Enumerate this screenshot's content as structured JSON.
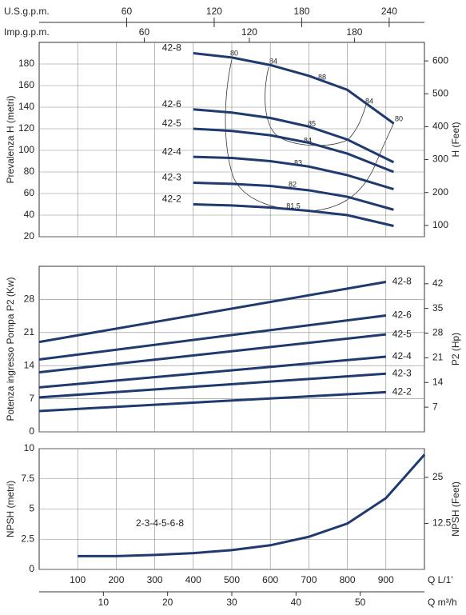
{
  "chart_data": [
    {
      "type": "line",
      "ylabel": "Prevalenza H (metri)",
      "y2label": "H (Feet)",
      "xlim": [
        0,
        1000
      ],
      "xticks": [
        100,
        200,
        300,
        400,
        500,
        600,
        700,
        800,
        900
      ],
      "ylim": [
        20,
        200
      ],
      "yticks": [
        20,
        40,
        60,
        80,
        100,
        120,
        140,
        160,
        180
      ],
      "y2lim": [
        65.62,
        656.17
      ],
      "y2ticks": [
        100,
        200,
        300,
        400,
        500,
        600
      ],
      "grid": true,
      "color": "#1f3a6e",
      "top_axes": [
        {
          "label": "U.S.g.p.m.",
          "xlim": [
            0,
            264.17
          ],
          "xticks": [
            60,
            120,
            180,
            240
          ]
        },
        {
          "label": "Imp.g.p.m.",
          "xlim": [
            0,
            219.97
          ],
          "xticks": [
            60,
            120,
            180
          ]
        }
      ],
      "efficiency_labels": [
        "80",
        "84",
        "88",
        "84",
        "80",
        "85",
        "84",
        "83",
        "82",
        "81.5"
      ],
      "series": [
        {
          "name": "42-8",
          "x": [
            400,
            500,
            600,
            700,
            800,
            920
          ],
          "values": [
            190,
            186,
            179,
            169,
            156,
            125
          ]
        },
        {
          "name": "42-6",
          "x": [
            400,
            500,
            600,
            700,
            800,
            920
          ],
          "values": [
            138,
            135,
            130,
            122,
            110,
            89
          ]
        },
        {
          "name": "42-5",
          "x": [
            400,
            500,
            600,
            700,
            800,
            920
          ],
          "values": [
            120,
            118,
            114,
            107,
            97,
            80
          ]
        },
        {
          "name": "42-4",
          "x": [
            400,
            500,
            600,
            700,
            800,
            920
          ],
          "values": [
            94,
            93,
            90,
            85,
            77,
            64
          ]
        },
        {
          "name": "42-3",
          "x": [
            400,
            500,
            600,
            700,
            800,
            920
          ],
          "values": [
            70,
            69,
            67,
            63,
            57,
            45
          ]
        },
        {
          "name": "42-2",
          "x": [
            400,
            500,
            600,
            700,
            800,
            920
          ],
          "values": [
            50,
            49,
            47,
            44,
            40,
            30
          ]
        }
      ]
    },
    {
      "type": "line",
      "ylabel": "Potenza ingresso Pompa P2 (Kw)",
      "y2label": "P2 (Hp)",
      "xlim": [
        0,
        1000
      ],
      "xticks": [
        100,
        200,
        300,
        400,
        500,
        600,
        700,
        800,
        900
      ],
      "ylim": [
        0,
        35
      ],
      "yticks": [
        0,
        7,
        14,
        21,
        28
      ],
      "y2lim": [
        0,
        46.94
      ],
      "y2ticks": [
        7,
        14,
        21,
        28,
        35,
        42
      ],
      "grid": true,
      "color": "#1f3a6e",
      "series": [
        {
          "name": "42-8",
          "x": [
            0,
            900
          ],
          "values": [
            19,
            31.7
          ]
        },
        {
          "name": "42-6",
          "x": [
            0,
            900
          ],
          "values": [
            15.3,
            24.6
          ]
        },
        {
          "name": "42-5",
          "x": [
            0,
            900
          ],
          "values": [
            12.6,
            20.6
          ]
        },
        {
          "name": "42-4",
          "x": [
            0,
            900
          ],
          "values": [
            9.4,
            15.9
          ]
        },
        {
          "name": "42-3",
          "x": [
            0,
            900
          ],
          "values": [
            7.3,
            12.3
          ]
        },
        {
          "name": "42-2",
          "x": [
            0,
            900
          ],
          "values": [
            4.4,
            8.4
          ]
        }
      ]
    },
    {
      "type": "line",
      "ylabel": "NPSH (metri)",
      "y2label": "NPSH (Feet)",
      "xlabel": "Q L/1'",
      "xlim": [
        0,
        1000
      ],
      "xticks": [
        100,
        200,
        300,
        400,
        500,
        600,
        700,
        800,
        900
      ],
      "ylim": [
        0,
        10
      ],
      "yticks": [
        0,
        2.5,
        5,
        7.5,
        10
      ],
      "y2lim": [
        0,
        32.81
      ],
      "y2ticks": [
        12.5,
        25
      ],
      "x2label": "Q m³/h",
      "x2lim": [
        0,
        60
      ],
      "x2ticks": [
        10,
        20,
        30,
        40,
        50
      ],
      "grid": true,
      "color": "#1f3a6e",
      "annotation": "2-3-4-5-6-8",
      "series": [
        {
          "x": [
            100,
            200,
            300,
            400,
            500,
            600,
            700,
            800,
            900,
            1000
          ],
          "values": [
            1.1,
            1.1,
            1.2,
            1.35,
            1.6,
            2.0,
            2.7,
            3.8,
            5.9,
            9.5
          ]
        }
      ]
    }
  ]
}
